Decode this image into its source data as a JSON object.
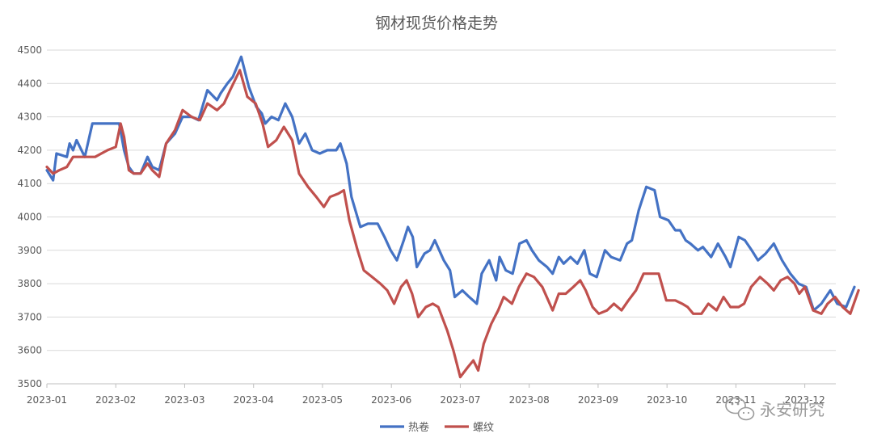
{
  "chart_data": {
    "type": "line",
    "title": "钢材现货价格走势",
    "xlabel": "",
    "ylabel": "",
    "ylim": [
      3500,
      4500
    ],
    "y_ticks": [
      3500,
      3600,
      3700,
      3800,
      3900,
      4000,
      4100,
      4200,
      4300,
      4400,
      4500
    ],
    "x_tick_labels": [
      "2023-01",
      "2023-02",
      "2023-03",
      "2023-04",
      "2023-05",
      "2023-06",
      "2023-07",
      "2023-08",
      "2023-09",
      "2023-10",
      "2023-11",
      "2023-12"
    ],
    "x_range": [
      0,
      11.45
    ],
    "grid": "horizontal",
    "legend": "bottom-center",
    "series": [
      {
        "name": "热卷",
        "color": "#4472C4",
        "points": [
          [
            0.0,
            4140
          ],
          [
            0.09,
            4110
          ],
          [
            0.14,
            4190
          ],
          [
            0.29,
            4180
          ],
          [
            0.33,
            4220
          ],
          [
            0.38,
            4200
          ],
          [
            0.43,
            4230
          ],
          [
            0.55,
            4180
          ],
          [
            0.66,
            4280
          ],
          [
            0.95,
            4280
          ],
          [
            1.05,
            4280
          ],
          [
            1.12,
            4200
          ],
          [
            1.19,
            4150
          ],
          [
            1.26,
            4130
          ],
          [
            1.36,
            4130
          ],
          [
            1.46,
            4180
          ],
          [
            1.53,
            4150
          ],
          [
            1.63,
            4140
          ],
          [
            1.73,
            4220
          ],
          [
            1.86,
            4250
          ],
          [
            1.97,
            4300
          ],
          [
            2.1,
            4300
          ],
          [
            2.2,
            4290
          ],
          [
            2.33,
            4380
          ],
          [
            2.47,
            4350
          ],
          [
            2.52,
            4370
          ],
          [
            2.62,
            4400
          ],
          [
            2.7,
            4420
          ],
          [
            2.82,
            4480
          ],
          [
            2.93,
            4390
          ],
          [
            3.04,
            4330
          ],
          [
            3.12,
            4310
          ],
          [
            3.17,
            4280
          ],
          [
            3.26,
            4300
          ],
          [
            3.36,
            4290
          ],
          [
            3.46,
            4340
          ],
          [
            3.56,
            4300
          ],
          [
            3.66,
            4220
          ],
          [
            3.75,
            4250
          ],
          [
            3.85,
            4200
          ],
          [
            3.96,
            4190
          ],
          [
            4.07,
            4200
          ],
          [
            4.2,
            4200
          ],
          [
            4.26,
            4220
          ],
          [
            4.35,
            4160
          ],
          [
            4.42,
            4060
          ],
          [
            4.55,
            3970
          ],
          [
            4.66,
            3980
          ],
          [
            4.8,
            3980
          ],
          [
            4.9,
            3940
          ],
          [
            4.99,
            3900
          ],
          [
            5.08,
            3870
          ],
          [
            5.18,
            3930
          ],
          [
            5.24,
            3970
          ],
          [
            5.31,
            3940
          ],
          [
            5.37,
            3850
          ],
          [
            5.48,
            3890
          ],
          [
            5.56,
            3900
          ],
          [
            5.63,
            3930
          ],
          [
            5.76,
            3870
          ],
          [
            5.85,
            3840
          ],
          [
            5.92,
            3760
          ],
          [
            6.03,
            3780
          ],
          [
            6.13,
            3760
          ],
          [
            6.24,
            3740
          ],
          [
            6.31,
            3830
          ],
          [
            6.42,
            3870
          ],
          [
            6.52,
            3810
          ],
          [
            6.57,
            3880
          ],
          [
            6.66,
            3840
          ],
          [
            6.76,
            3830
          ],
          [
            6.86,
            3920
          ],
          [
            6.96,
            3930
          ],
          [
            7.04,
            3900
          ],
          [
            7.14,
            3870
          ],
          [
            7.26,
            3850
          ],
          [
            7.34,
            3830
          ],
          [
            7.43,
            3880
          ],
          [
            7.5,
            3860
          ],
          [
            7.6,
            3880
          ],
          [
            7.7,
            3860
          ],
          [
            7.8,
            3900
          ],
          [
            7.88,
            3830
          ],
          [
            7.98,
            3820
          ],
          [
            8.1,
            3900
          ],
          [
            8.19,
            3880
          ],
          [
            8.32,
            3870
          ],
          [
            8.42,
            3920
          ],
          [
            8.49,
            3930
          ],
          [
            8.59,
            4020
          ],
          [
            8.7,
            4090
          ],
          [
            8.82,
            4080
          ],
          [
            8.9,
            4000
          ],
          [
            9.02,
            3990
          ],
          [
            9.12,
            3960
          ],
          [
            9.19,
            3960
          ],
          [
            9.27,
            3930
          ],
          [
            9.34,
            3920
          ],
          [
            9.45,
            3900
          ],
          [
            9.52,
            3910
          ],
          [
            9.64,
            3880
          ],
          [
            9.74,
            3920
          ],
          [
            9.85,
            3880
          ],
          [
            9.92,
            3850
          ],
          [
            10.04,
            3940
          ],
          [
            10.13,
            3930
          ],
          [
            10.23,
            3900
          ],
          [
            10.32,
            3870
          ],
          [
            10.43,
            3890
          ],
          [
            10.55,
            3920
          ],
          [
            10.67,
            3870
          ],
          [
            10.79,
            3830
          ],
          [
            10.91,
            3800
          ],
          [
            11.02,
            3790
          ],
          [
            11.13,
            3720
          ],
          [
            11.24,
            3740
          ],
          [
            11.37,
            3780
          ],
          [
            11.47,
            3740
          ],
          [
            11.6,
            3730
          ],
          [
            11.72,
            3790
          ]
        ]
      },
      {
        "name": "螺纹",
        "color": "#C0504D",
        "points": [
          [
            0.0,
            4150
          ],
          [
            0.09,
            4130
          ],
          [
            0.18,
            4140
          ],
          [
            0.29,
            4150
          ],
          [
            0.38,
            4180
          ],
          [
            0.55,
            4180
          ],
          [
            0.7,
            4180
          ],
          [
            0.88,
            4200
          ],
          [
            1.0,
            4210
          ],
          [
            1.07,
            4280
          ],
          [
            1.12,
            4240
          ],
          [
            1.19,
            4140
          ],
          [
            1.26,
            4130
          ],
          [
            1.36,
            4130
          ],
          [
            1.46,
            4160
          ],
          [
            1.53,
            4140
          ],
          [
            1.63,
            4120
          ],
          [
            1.73,
            4220
          ],
          [
            1.86,
            4260
          ],
          [
            1.97,
            4320
          ],
          [
            2.1,
            4300
          ],
          [
            2.22,
            4290
          ],
          [
            2.33,
            4340
          ],
          [
            2.47,
            4320
          ],
          [
            2.57,
            4340
          ],
          [
            2.66,
            4380
          ],
          [
            2.8,
            4440
          ],
          [
            2.91,
            4360
          ],
          [
            3.03,
            4340
          ],
          [
            3.13,
            4280
          ],
          [
            3.21,
            4210
          ],
          [
            3.33,
            4230
          ],
          [
            3.44,
            4270
          ],
          [
            3.56,
            4230
          ],
          [
            3.66,
            4130
          ],
          [
            3.79,
            4090
          ],
          [
            3.91,
            4060
          ],
          [
            4.02,
            4030
          ],
          [
            4.11,
            4060
          ],
          [
            4.23,
            4070
          ],
          [
            4.31,
            4080
          ],
          [
            4.39,
            3990
          ],
          [
            4.51,
            3900
          ],
          [
            4.6,
            3840
          ],
          [
            4.72,
            3820
          ],
          [
            4.84,
            3800
          ],
          [
            4.94,
            3780
          ],
          [
            5.04,
            3740
          ],
          [
            5.14,
            3790
          ],
          [
            5.22,
            3810
          ],
          [
            5.3,
            3770
          ],
          [
            5.39,
            3700
          ],
          [
            5.5,
            3730
          ],
          [
            5.6,
            3740
          ],
          [
            5.68,
            3730
          ],
          [
            5.81,
            3660
          ],
          [
            5.9,
            3600
          ],
          [
            6.0,
            3520
          ],
          [
            6.11,
            3550
          ],
          [
            6.19,
            3570
          ],
          [
            6.26,
            3540
          ],
          [
            6.34,
            3620
          ],
          [
            6.45,
            3680
          ],
          [
            6.55,
            3720
          ],
          [
            6.63,
            3760
          ],
          [
            6.75,
            3740
          ],
          [
            6.85,
            3790
          ],
          [
            6.96,
            3830
          ],
          [
            7.07,
            3820
          ],
          [
            7.19,
            3790
          ],
          [
            7.34,
            3720
          ],
          [
            7.43,
            3770
          ],
          [
            7.53,
            3770
          ],
          [
            7.64,
            3790
          ],
          [
            7.74,
            3810
          ],
          [
            7.82,
            3780
          ],
          [
            7.92,
            3730
          ],
          [
            8.01,
            3710
          ],
          [
            8.13,
            3720
          ],
          [
            8.23,
            3740
          ],
          [
            8.34,
            3720
          ],
          [
            8.44,
            3750
          ],
          [
            8.55,
            3780
          ],
          [
            8.66,
            3830
          ],
          [
            8.8,
            3830
          ],
          [
            8.88,
            3830
          ],
          [
            8.99,
            3750
          ],
          [
            9.12,
            3750
          ],
          [
            9.22,
            3740
          ],
          [
            9.3,
            3730
          ],
          [
            9.38,
            3710
          ],
          [
            9.5,
            3710
          ],
          [
            9.6,
            3740
          ],
          [
            9.72,
            3720
          ],
          [
            9.82,
            3760
          ],
          [
            9.92,
            3730
          ],
          [
            10.04,
            3730
          ],
          [
            10.12,
            3740
          ],
          [
            10.22,
            3790
          ],
          [
            10.35,
            3820
          ],
          [
            10.46,
            3800
          ],
          [
            10.55,
            3780
          ],
          [
            10.65,
            3810
          ],
          [
            10.75,
            3820
          ],
          [
            10.85,
            3800
          ],
          [
            10.92,
            3770
          ],
          [
            11.0,
            3790
          ],
          [
            11.12,
            3720
          ],
          [
            11.24,
            3710
          ],
          [
            11.33,
            3740
          ],
          [
            11.44,
            3760
          ],
          [
            11.55,
            3730
          ],
          [
            11.66,
            3710
          ],
          [
            11.78,
            3780
          ]
        ]
      }
    ]
  },
  "watermark": {
    "text": "永安研究",
    "icon": "wechat-icon"
  }
}
